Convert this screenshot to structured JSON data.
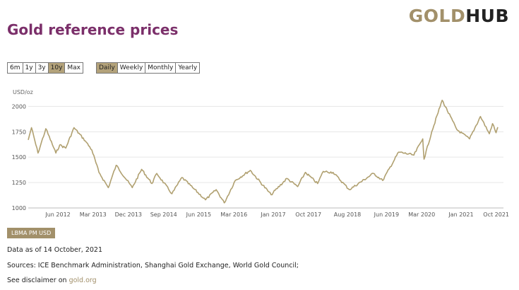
{
  "brand": {
    "logo_gold": "GOLD",
    "logo_hub": "HUB"
  },
  "page_title": "Gold reference prices",
  "range_buttons": [
    {
      "label": "6m",
      "active": false
    },
    {
      "label": "1y",
      "active": false
    },
    {
      "label": "3y",
      "active": false
    },
    {
      "label": "10y",
      "active": true
    },
    {
      "label": "Max",
      "active": false
    }
  ],
  "frequency_buttons": [
    {
      "label": "Daily",
      "active": true
    },
    {
      "label": "Weekly",
      "active": false
    },
    {
      "label": "Monthly",
      "active": false
    },
    {
      "label": "Yearly",
      "active": false
    }
  ],
  "colors": {
    "accent": "#a2906a",
    "line": "#b0a070",
    "title": "#7b2f6a",
    "active_button": "#b3a27a"
  },
  "chart_data": {
    "type": "line",
    "ylabel": "USD/oz",
    "ylim": [
      1000,
      2100
    ],
    "yticks": [
      1000,
      1250,
      1500,
      1750,
      2000
    ],
    "grid": true,
    "xlim": [
      "2011-10-14",
      "2021-10-14"
    ],
    "xticks": [
      {
        "label": "Jun 2012",
        "date": "2012-06-01"
      },
      {
        "label": "Mar 2013",
        "date": "2013-03-01"
      },
      {
        "label": "Dec 2013",
        "date": "2013-12-01"
      },
      {
        "label": "Sep 2014",
        "date": "2014-09-01"
      },
      {
        "label": "Jun 2015",
        "date": "2015-06-01"
      },
      {
        "label": "Mar 2016",
        "date": "2016-03-01"
      },
      {
        "label": "Jan 2017",
        "date": "2017-01-01"
      },
      {
        "label": "Oct 2017",
        "date": "2017-10-01"
      },
      {
        "label": "Aug 2018",
        "date": "2018-08-01"
      },
      {
        "label": "Jun 2019",
        "date": "2019-06-01"
      },
      {
        "label": "Mar 2020",
        "date": "2020-03-01"
      },
      {
        "label": "Jan 2021",
        "date": "2021-01-01"
      },
      {
        "label": "Oct 2021",
        "date": "2021-10-01"
      }
    ],
    "series": [
      {
        "name": "LBMA PM USD",
        "points": [
          [
            "2011-10-14",
            1670
          ],
          [
            "2011-11-08",
            1790
          ],
          [
            "2011-12-29",
            1540
          ],
          [
            "2012-02-28",
            1780
          ],
          [
            "2012-05-16",
            1540
          ],
          [
            "2012-06-15",
            1620
          ],
          [
            "2012-08-01",
            1590
          ],
          [
            "2012-10-04",
            1790
          ],
          [
            "2012-12-31",
            1660
          ],
          [
            "2013-02-20",
            1570
          ],
          [
            "2013-04-16",
            1350
          ],
          [
            "2013-06-28",
            1200
          ],
          [
            "2013-08-28",
            1420
          ],
          [
            "2013-12-31",
            1200
          ],
          [
            "2014-03-14",
            1380
          ],
          [
            "2014-06-02",
            1240
          ],
          [
            "2014-07-10",
            1340
          ],
          [
            "2014-11-05",
            1140
          ],
          [
            "2015-01-22",
            1300
          ],
          [
            "2015-04-15",
            1200
          ],
          [
            "2015-07-24",
            1080
          ],
          [
            "2015-10-15",
            1180
          ],
          [
            "2015-12-17",
            1050
          ],
          [
            "2016-03-11",
            1270
          ],
          [
            "2016-07-06",
            1370
          ],
          [
            "2016-12-15",
            1130
          ],
          [
            "2017-04-17",
            1290
          ],
          [
            "2017-07-10",
            1210
          ],
          [
            "2017-09-08",
            1350
          ],
          [
            "2017-12-12",
            1240
          ],
          [
            "2018-01-25",
            1360
          ],
          [
            "2018-04-11",
            1350
          ],
          [
            "2018-08-16",
            1180
          ],
          [
            "2019-02-20",
            1340
          ],
          [
            "2019-05-02",
            1270
          ],
          [
            "2019-09-04",
            1550
          ],
          [
            "2019-12-31",
            1520
          ],
          [
            "2020-03-09",
            1680
          ],
          [
            "2020-03-19",
            1480
          ],
          [
            "2020-05-18",
            1750
          ],
          [
            "2020-08-07",
            2060
          ],
          [
            "2020-11-30",
            1770
          ],
          [
            "2021-03-08",
            1680
          ],
          [
            "2021-06-01",
            1900
          ],
          [
            "2021-08-09",
            1730
          ],
          [
            "2021-09-03",
            1830
          ],
          [
            "2021-09-30",
            1740
          ],
          [
            "2021-10-14",
            1795
          ]
        ]
      }
    ]
  },
  "legend_badge": "LBMA PM USD",
  "footer": {
    "data_as_of": "Data as of 14 October, 2021",
    "sources": "Sources: ICE Benchmark Administration, Shanghai Gold Exchange, World Gold Council;",
    "disclaimer_prefix": "See disclaimer on",
    "disclaimer_link": "gold.org"
  }
}
